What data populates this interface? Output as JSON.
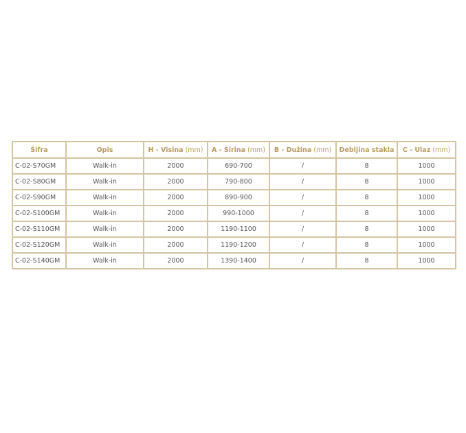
{
  "table": {
    "headers": [
      {
        "main": "Šifra",
        "unit": ""
      },
      {
        "main": "Opis",
        "unit": ""
      },
      {
        "main": "H - Visina",
        "unit": " (mm)"
      },
      {
        "main": "A - Širina",
        "unit": " (mm)"
      },
      {
        "main": "B - Dužina",
        "unit": " (mm)"
      },
      {
        "main": "Debljina stakla",
        "unit": ""
      },
      {
        "main": "C - Ulaz",
        "unit": " (mm)"
      }
    ],
    "rows": [
      [
        "C-02-S70GM",
        "Walk-in",
        "2000",
        "690-700",
        "/",
        "8",
        "1000"
      ],
      [
        "C-02-S80GM",
        "Walk-in",
        "2000",
        "790-800",
        "/",
        "8",
        "1000"
      ],
      [
        "C-02-S90GM",
        "Walk-in",
        "2000",
        "890-900",
        "/",
        "8",
        "1000"
      ],
      [
        "C-02-S100GM",
        "Walk-in",
        "2000",
        "990-1000",
        "/",
        "8",
        "1000"
      ],
      [
        "C-02-S110GM",
        "Walk-in",
        "2000",
        "1190-1100",
        "/",
        "8",
        "1000"
      ],
      [
        "C-02-S120GM",
        "Walk-in",
        "2000",
        "1190-1200",
        "/",
        "8",
        "1000"
      ],
      [
        "C-02-S140GM",
        "Walk-in",
        "2000",
        "1390-1400",
        "/",
        "8",
        "1000"
      ]
    ]
  }
}
